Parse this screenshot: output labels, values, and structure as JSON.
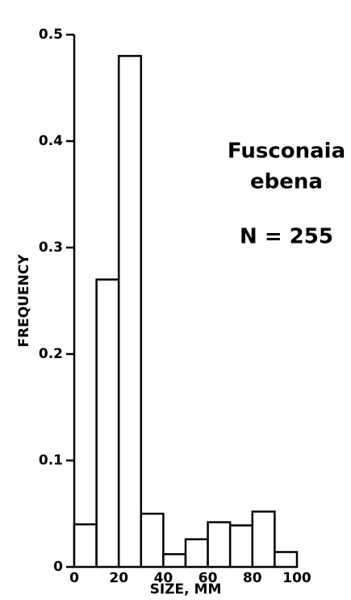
{
  "chart_data": {
    "type": "histogram",
    "bins": [
      0,
      10,
      20,
      30,
      40,
      50,
      60,
      70,
      80,
      90,
      100
    ],
    "values": [
      0.04,
      0.27,
      0.48,
      0.05,
      0.012,
      0.026,
      0.042,
      0.039,
      0.052,
      0.014
    ],
    "color": "#ffffff",
    "xlim": [
      0,
      100
    ],
    "xticks": [
      0,
      20,
      40,
      60,
      80,
      100
    ],
    "ylim": [
      0,
      0.5
    ],
    "yticks": [
      0,
      0.1,
      0.2,
      0.3,
      0.4,
      0.5
    ],
    "xlabel": "SIZE, MM",
    "ylabel": "FREQUENCY",
    "annotations": [
      "Fusconaia",
      "ebena",
      "N = 255"
    ]
  }
}
